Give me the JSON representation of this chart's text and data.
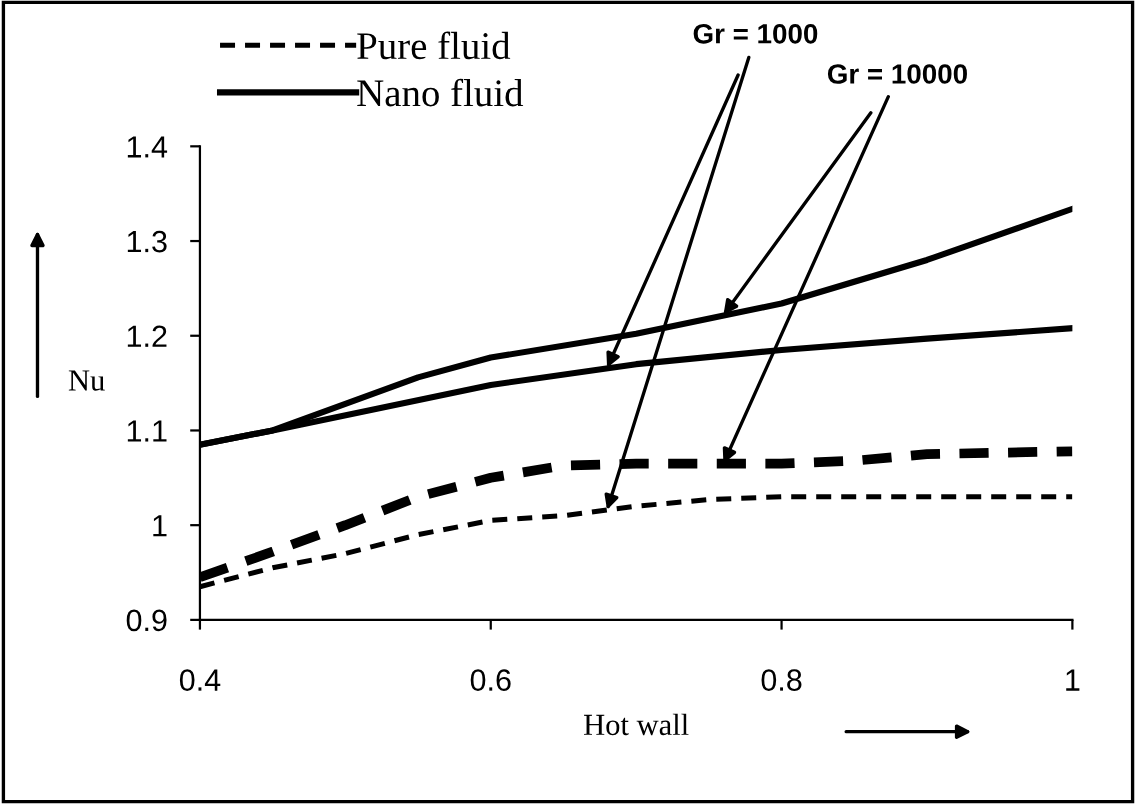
{
  "chart_data": {
    "type": "line",
    "xlabel": "Hot wall",
    "ylabel": "Nu",
    "xlim": [
      0.4,
      1
    ],
    "xticks": [
      0.4,
      0.6,
      0.8,
      1
    ],
    "ylim": [
      0.9,
      1.4
    ],
    "yticks": [
      0.9,
      1,
      1.1,
      1.2,
      1.3,
      1.4
    ],
    "grid": false,
    "legend": "top left",
    "marker": "none",
    "series": [
      {
        "name": "Pure fluid",
        "color": "#000000",
        "line_style": "dashed",
        "x": [
          0.4,
          0.45,
          0.5,
          0.55,
          0.6,
          0.65,
          0.7,
          0.75,
          0.8,
          0.9,
          1.0
        ],
        "values": [
          0.935,
          0.955,
          0.97,
          0.99,
          1.005,
          1.01,
          1.02,
          1.027,
          1.03,
          1.03,
          1.03
        ]
      },
      {
        "color": "#000000",
        "line_style": "dashed",
        "x": [
          0.4,
          0.45,
          0.5,
          0.55,
          0.6,
          0.65,
          0.7,
          0.8,
          0.85,
          0.9,
          1.0
        ],
        "values": [
          0.945,
          0.972,
          1.0,
          1.03,
          1.05,
          1.063,
          1.065,
          1.065,
          1.068,
          1.075,
          1.078
        ]
      },
      {
        "name": "Nano fluid",
        "color": "#000000",
        "line_style": "solid",
        "x": [
          0.4,
          0.45,
          0.6,
          0.7,
          0.8,
          0.9,
          1.0
        ],
        "values": [
          1.085,
          1.1,
          1.148,
          1.17,
          1.185,
          1.197,
          1.208
        ]
      },
      {
        "color": "#000000",
        "line_style": "solid",
        "x": [
          0.4,
          0.45,
          0.55,
          0.6,
          0.7,
          0.8,
          0.9,
          1.0
        ],
        "values": [
          1.085,
          1.1,
          1.156,
          1.177,
          1.202,
          1.234,
          1.28,
          1.334
        ]
      }
    ],
    "annotations": [
      {
        "text": "Gr = 1000",
        "x": 0.68,
        "y": 1.166
      },
      {
        "text": "Gr = 10000",
        "x": 0.76,
        "y": 1.222
      }
    ]
  }
}
